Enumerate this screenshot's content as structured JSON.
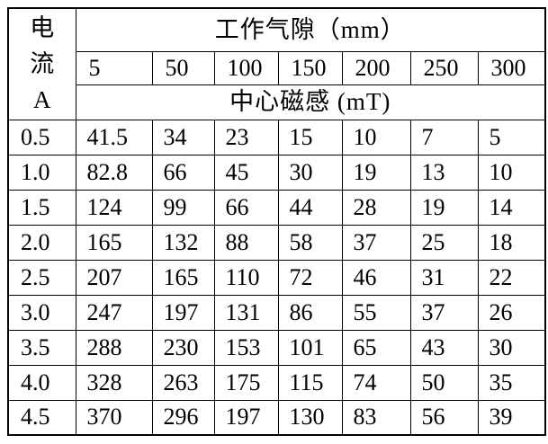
{
  "table": {
    "corner_header": {
      "line1": "电",
      "line2": "流",
      "line3": "A"
    },
    "gap_header": "工作气隙（mm）",
    "gap_columns": [
      "5",
      "50",
      "100",
      "150",
      "200",
      "250",
      "300"
    ],
    "flux_header": "中心磁感 (mT)",
    "rows": [
      {
        "current": "0.5",
        "values": [
          "41.5",
          "34",
          "23",
          "15",
          "10",
          "7",
          "5"
        ]
      },
      {
        "current": "1.0",
        "values": [
          "82.8",
          "66",
          "45",
          "30",
          "19",
          "13",
          "10"
        ]
      },
      {
        "current": "1.5",
        "values": [
          "124",
          "99",
          "66",
          "44",
          "28",
          "19",
          "14"
        ]
      },
      {
        "current": "2.0",
        "values": [
          "165",
          "132",
          "88",
          "58",
          "37",
          "25",
          "18"
        ]
      },
      {
        "current": "2.5",
        "values": [
          "207",
          "165",
          "110",
          "72",
          "46",
          "31",
          "22"
        ]
      },
      {
        "current": "3.0",
        "values": [
          "247",
          "197",
          "131",
          "86",
          "55",
          "37",
          "26"
        ]
      },
      {
        "current": "3.5",
        "values": [
          "288",
          "230",
          "153",
          "101",
          "65",
          "43",
          "30"
        ]
      },
      {
        "current": "4.0",
        "values": [
          "328",
          "263",
          "175",
          "115",
          "74",
          "50",
          "35"
        ]
      },
      {
        "current": "4.5",
        "values": [
          "370",
          "296",
          "197",
          "130",
          "83",
          "56",
          "39"
        ]
      }
    ]
  }
}
